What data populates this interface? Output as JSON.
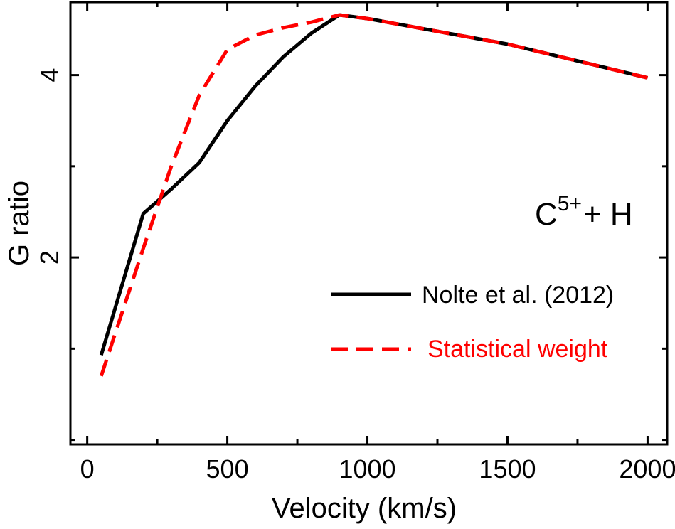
{
  "chart_data": {
    "type": "line",
    "xlabel": "Velocity (km/s)",
    "ylabel": "G ratio",
    "xlim": [
      -60,
      2070
    ],
    "ylim": [
      -0.05,
      4.8
    ],
    "xticks_major": [
      0,
      500,
      1000,
      1500,
      2000
    ],
    "xtick_labels": [
      "0",
      "500",
      "1000",
      "1500",
      "2000"
    ],
    "xticks_minor": [
      250,
      750,
      1250,
      1750
    ],
    "yticks_major": [
      2,
      4
    ],
    "ytick_labels": [
      "2",
      "4"
    ],
    "yticks_minor": [
      0,
      1,
      3
    ],
    "grid": false,
    "legend_position": "right",
    "annotation": {
      "base": "C",
      "superscript": "5+",
      "suffix": "+ H"
    },
    "series": [
      {
        "name": "Nolte et al. (2012)",
        "color": "#000000",
        "style": "solid",
        "x": [
          50,
          200,
          300,
          400,
          500,
          600,
          700,
          800,
          900,
          1000,
          1500,
          2000
        ],
        "y": [
          0.93,
          2.48,
          2.75,
          3.04,
          3.5,
          3.88,
          4.2,
          4.46,
          4.66,
          4.62,
          4.34,
          3.97
        ]
      },
      {
        "name": "Statistical weight",
        "color": "#ff0000",
        "style": "dashed",
        "x": [
          50,
          200,
          300,
          400,
          500,
          600,
          700,
          800,
          900,
          1000,
          1500,
          2000
        ],
        "y": [
          0.7,
          2.1,
          3.0,
          3.78,
          4.28,
          4.44,
          4.52,
          4.58,
          4.66,
          4.62,
          4.34,
          3.97
        ]
      }
    ]
  }
}
